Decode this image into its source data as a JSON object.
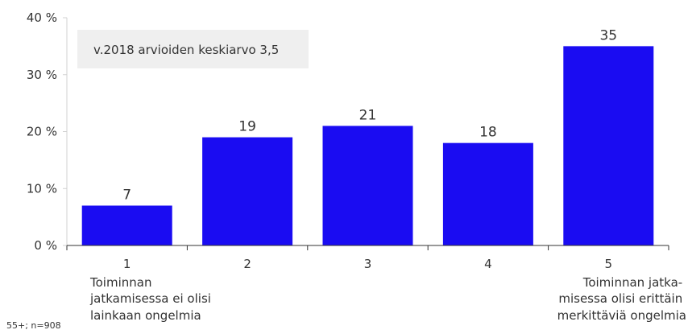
{
  "chart_data": {
    "type": "bar",
    "categories": [
      "1",
      "2",
      "3",
      "4",
      "5"
    ],
    "values": [
      7,
      19,
      21,
      18,
      35
    ],
    "data_labels": [
      "7",
      "19",
      "21",
      "18",
      "35"
    ],
    "ylim": [
      0,
      40
    ],
    "yticks": [
      0,
      10,
      20,
      30,
      40
    ],
    "ytick_labels": [
      "0 %",
      "10 %",
      "20 %",
      "30 %",
      "40 %"
    ],
    "bar_color": "#1a0cf2",
    "grid": false,
    "annotation": "v.2018 arvioiden keskiarvo 3,5",
    "category_notes": {
      "first": [
        "Toiminnan",
        "jatkamisessa ei olisi",
        "lainkaan ongelmia"
      ],
      "last": [
        "Toiminnan jatka-",
        "misessa olisi erittäin",
        "merkittäviä ongelmia"
      ]
    },
    "footnote": "55+; n=908"
  }
}
